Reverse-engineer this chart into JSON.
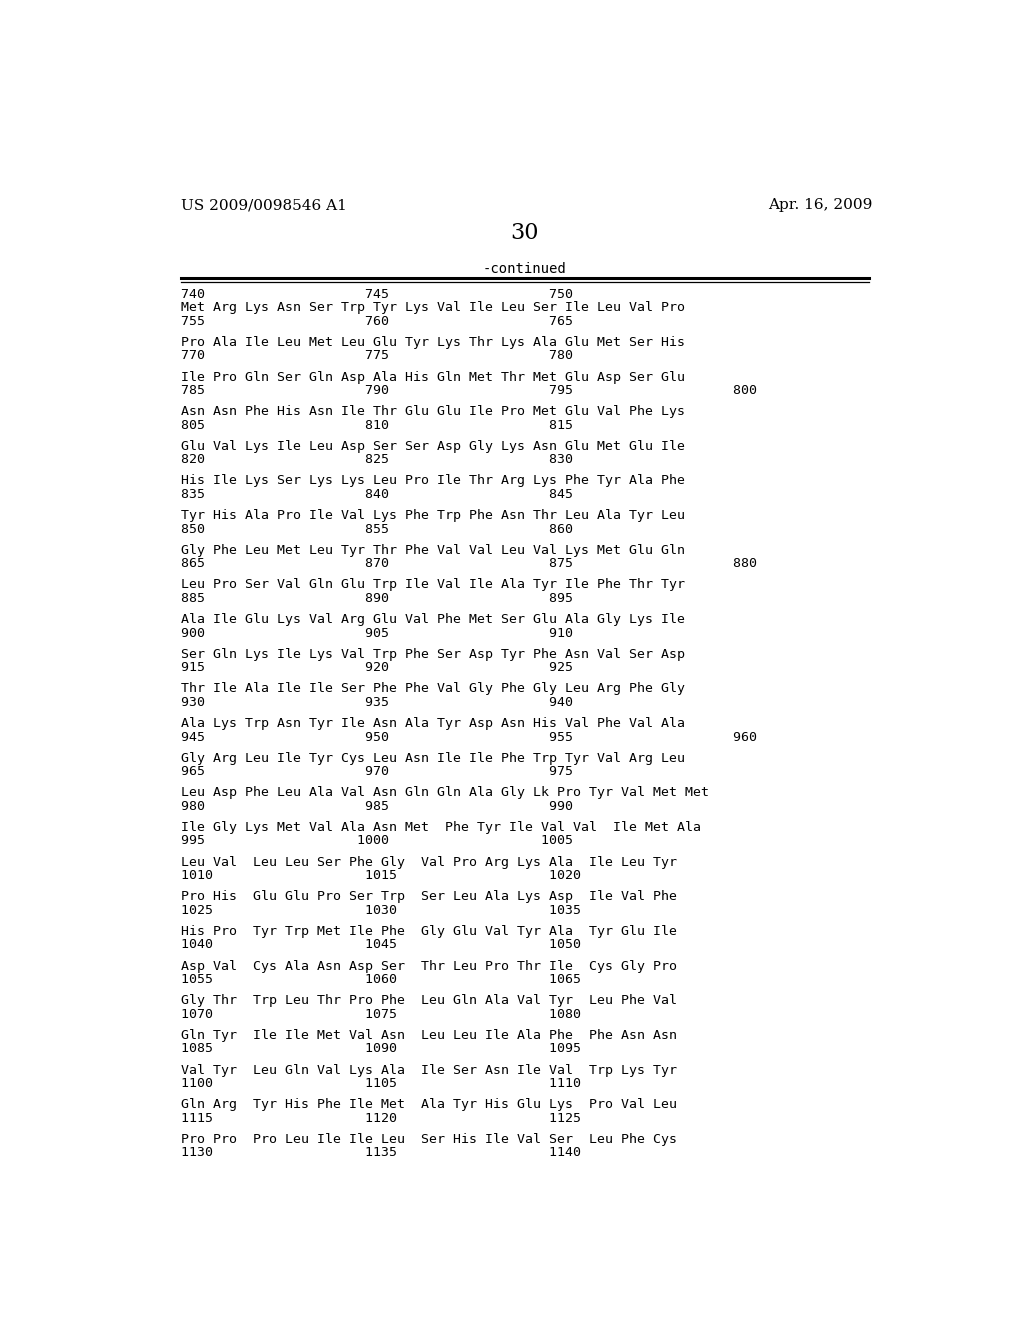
{
  "header_left": "US 2009/0098546 A1",
  "header_right": "Apr. 16, 2009",
  "page_number": "30",
  "continued_label": "-continued",
  "background_color": "#ffffff",
  "text_color": "#000000",
  "font_size_header": 11,
  "font_size_page": 16,
  "font_size_seq": 9.5,
  "entries": [
    {
      "top_num": "740                    745                    750",
      "seq": "Met Arg Lys Asn Ser Trp Tyr Lys Val Ile Leu Ser Ile Leu Val Pro",
      "bot_num": "755                    760                    765"
    },
    {
      "top_num": null,
      "seq": "Pro Ala Ile Leu Met Leu Glu Tyr Lys Thr Lys Ala Glu Met Ser His",
      "bot_num": "770                    775                    780"
    },
    {
      "top_num": null,
      "seq": "Ile Pro Gln Ser Gln Asp Ala His Gln Met Thr Met Glu Asp Ser Glu",
      "bot_num": "785                    790                    795                    800"
    },
    {
      "top_num": null,
      "seq": "Asn Asn Phe His Asn Ile Thr Glu Glu Ile Pro Met Glu Val Phe Lys",
      "bot_num": "805                    810                    815"
    },
    {
      "top_num": null,
      "seq": "Glu Val Lys Ile Leu Asp Ser Ser Asp Gly Lys Asn Glu Met Glu Ile",
      "bot_num": "820                    825                    830"
    },
    {
      "top_num": null,
      "seq": "His Ile Lys Ser Lys Lys Leu Pro Ile Thr Arg Lys Phe Tyr Ala Phe",
      "bot_num": "835                    840                    845"
    },
    {
      "top_num": null,
      "seq": "Tyr His Ala Pro Ile Val Lys Phe Trp Phe Asn Thr Leu Ala Tyr Leu",
      "bot_num": "850                    855                    860"
    },
    {
      "top_num": null,
      "seq": "Gly Phe Leu Met Leu Tyr Thr Phe Val Val Leu Val Lys Met Glu Gln",
      "bot_num": "865                    870                    875                    880"
    },
    {
      "top_num": null,
      "seq": "Leu Pro Ser Val Gln Glu Trp Ile Val Ile Ala Tyr Ile Phe Thr Tyr",
      "bot_num": "885                    890                    895"
    },
    {
      "top_num": null,
      "seq": "Ala Ile Glu Lys Val Arg Glu Val Phe Met Ser Glu Ala Gly Lys Ile",
      "bot_num": "900                    905                    910"
    },
    {
      "top_num": null,
      "seq": "Ser Gln Lys Ile Lys Val Trp Phe Ser Asp Tyr Phe Asn Val Ser Asp",
      "bot_num": "915                    920                    925"
    },
    {
      "top_num": null,
      "seq": "Thr Ile Ala Ile Ile Ser Phe Phe Val Gly Phe Gly Leu Arg Phe Gly",
      "bot_num": "930                    935                    940"
    },
    {
      "top_num": null,
      "seq": "Ala Lys Trp Asn Tyr Ile Asn Ala Tyr Asp Asn His Val Phe Val Ala",
      "bot_num": "945                    950                    955                    960"
    },
    {
      "top_num": null,
      "seq": "Gly Arg Leu Ile Tyr Cys Leu Asn Ile Ile Phe Trp Tyr Val Arg Leu",
      "bot_num": "965                    970                    975"
    },
    {
      "top_num": null,
      "seq": "Leu Asp Phe Leu Ala Val Asn Gln Gln Ala Gly Lk Pro Tyr Val Met Met",
      "bot_num": "980                    985                    990"
    },
    {
      "top_num": null,
      "seq": "Ile Gly Lys Met Val Ala Asn Met  Phe Tyr Ile Val Val  Ile Met Ala",
      "bot_num": "995                   1000                   1005"
    },
    {
      "top_num": null,
      "seq": "Leu Val  Leu Leu Ser Phe Gly  Val Pro Arg Lys Ala  Ile Leu Tyr",
      "bot_num": "1010                   1015                   1020"
    },
    {
      "top_num": null,
      "seq": "Pro His  Glu Glu Pro Ser Trp  Ser Leu Ala Lys Asp  Ile Val Phe",
      "bot_num": "1025                   1030                   1035"
    },
    {
      "top_num": null,
      "seq": "His Pro  Tyr Trp Met Ile Phe  Gly Glu Val Tyr Ala  Tyr Glu Ile",
      "bot_num": "1040                   1045                   1050"
    },
    {
      "top_num": null,
      "seq": "Asp Val  Cys Ala Asn Asp Ser  Thr Leu Pro Thr Ile  Cys Gly Pro",
      "bot_num": "1055                   1060                   1065"
    },
    {
      "top_num": null,
      "seq": "Gly Thr  Trp Leu Thr Pro Phe  Leu Gln Ala Val Tyr  Leu Phe Val",
      "bot_num": "1070                   1075                   1080"
    },
    {
      "top_num": null,
      "seq": "Gln Tyr  Ile Ile Met Val Asn  Leu Leu Ile Ala Phe  Phe Asn Asn",
      "bot_num": "1085                   1090                   1095"
    },
    {
      "top_num": null,
      "seq": "Val Tyr  Leu Gln Val Lys Ala  Ile Ser Asn Ile Val  Trp Lys Tyr",
      "bot_num": "1100                   1105                   1110"
    },
    {
      "top_num": null,
      "seq": "Gln Arg  Tyr His Phe Ile Met  Ala Tyr His Glu Lys  Pro Val Leu",
      "bot_num": "1115                   1120                   1125"
    },
    {
      "top_num": null,
      "seq": "Pro Pro  Pro Leu Ile Ile Leu  Ser His Ile Val Ser  Leu Phe Cys",
      "bot_num": "1130                   1135                   1140"
    }
  ]
}
